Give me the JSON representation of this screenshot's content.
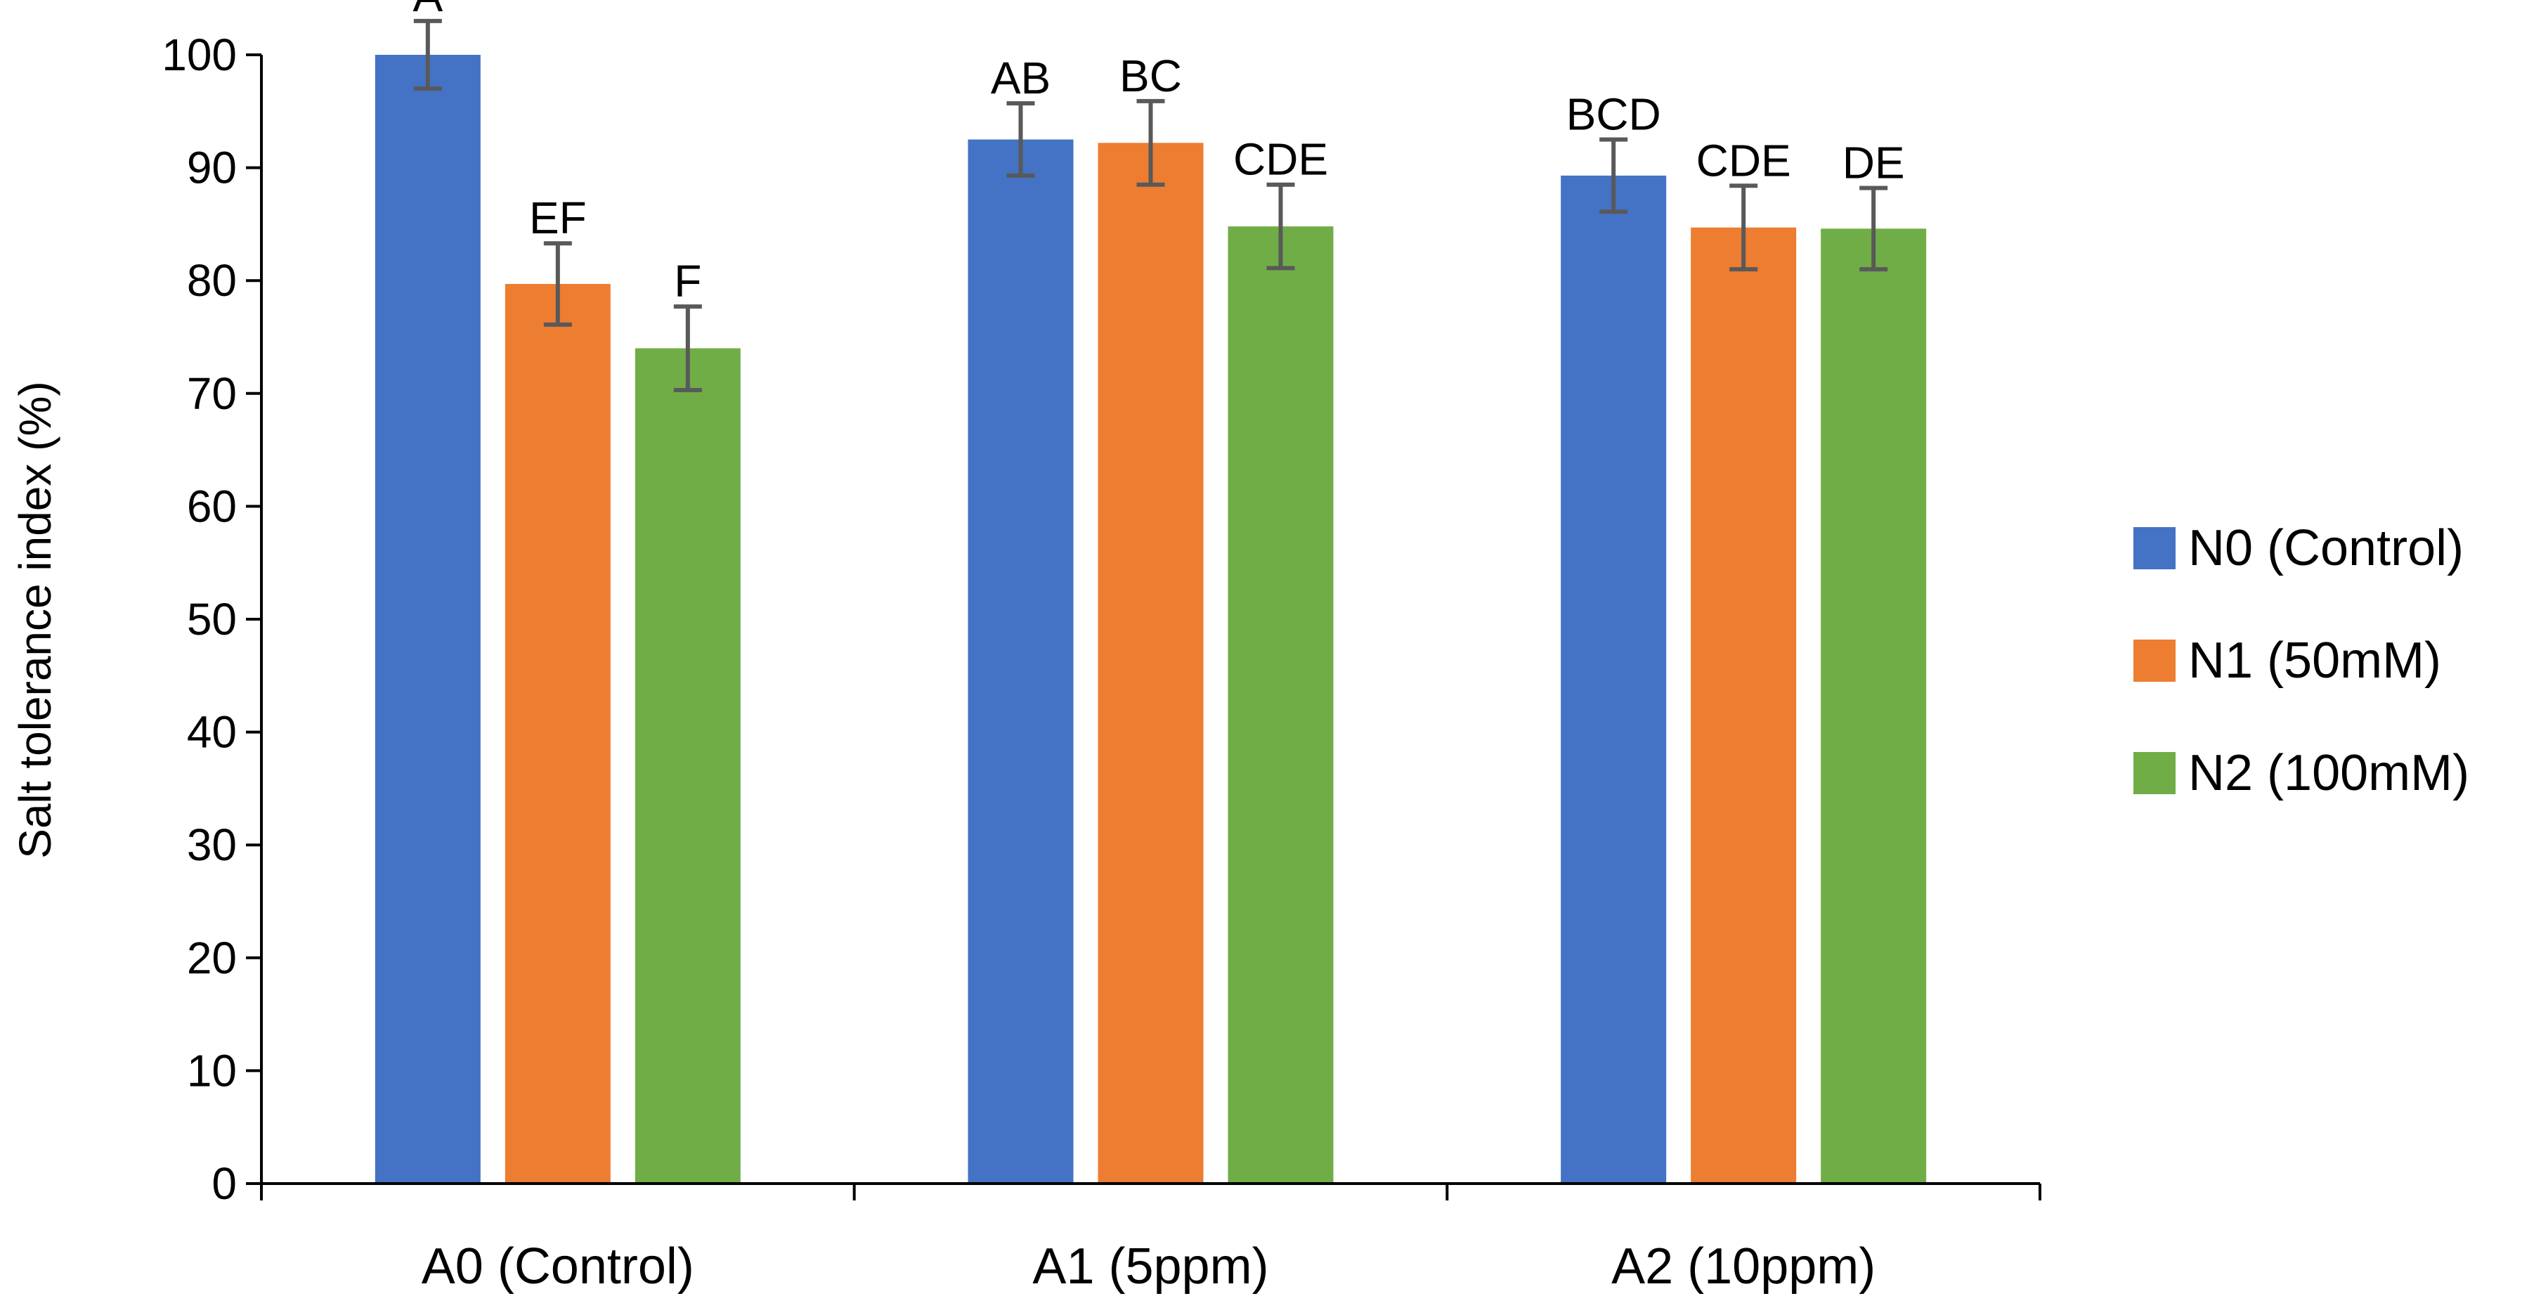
{
  "chart_data": {
    "type": "bar",
    "title": "",
    "xlabel": "",
    "ylabel": "Salt tolerance index (%)",
    "ylim": [
      0,
      100
    ],
    "yticks": [
      0,
      10,
      20,
      30,
      40,
      50,
      60,
      70,
      80,
      90,
      100
    ],
    "categories": [
      "A0 (Control)",
      "A1 (5ppm)",
      "A2 (10ppm)"
    ],
    "legend_position": "right",
    "grid": false,
    "series": [
      {
        "name": "N0 (Control)",
        "color": "#4472C4",
        "values": [
          100,
          92.5,
          89.3
        ],
        "errors": [
          3.0,
          3.2,
          3.2
        ],
        "labels": [
          "A",
          "AB",
          "BCD"
        ]
      },
      {
        "name": "N1 (50mM)",
        "color": "#ED7D31",
        "values": [
          79.7,
          92.2,
          84.7
        ],
        "errors": [
          3.6,
          3.7,
          3.7
        ],
        "labels": [
          "EF",
          "BC",
          "CDE"
        ]
      },
      {
        "name": "N2 (100mM)",
        "color": "#70AD47",
        "values": [
          74.0,
          84.8,
          84.6
        ],
        "errors": [
          3.7,
          3.7,
          3.6
        ],
        "labels": [
          "F",
          "CDE",
          "DE"
        ]
      }
    ]
  }
}
